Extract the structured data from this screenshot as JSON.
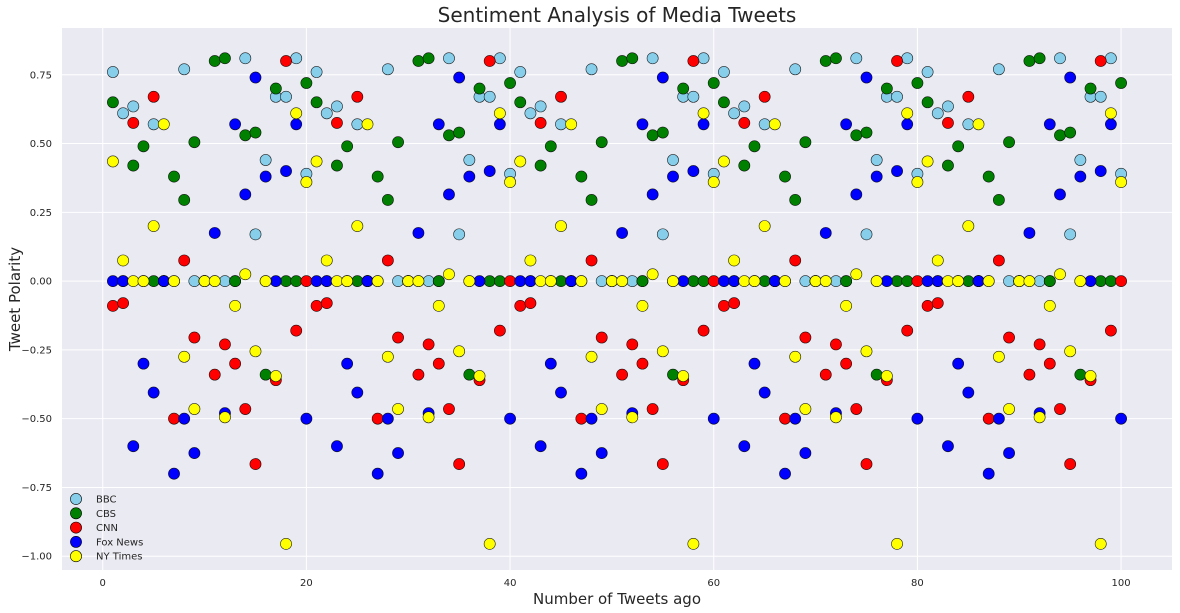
{
  "chart_data": {
    "type": "scatter",
    "title": "Sentiment Analysis of Media Tweets",
    "xlabel": "Number of Tweets ago",
    "ylabel": "Tweet Polarity",
    "xlim": [
      -4,
      105
    ],
    "ylim": [
      -1.05,
      0.92
    ],
    "xticks": [
      0,
      20,
      40,
      60,
      80,
      100
    ],
    "yticks": [
      -1.0,
      -0.75,
      -0.5,
      -0.25,
      0.0,
      0.25,
      0.5,
      0.75
    ],
    "ytick_labels": [
      "−1.00",
      "−0.75",
      "−0.50",
      "−0.25",
      "0.00",
      "0.25",
      "0.50",
      "0.75"
    ],
    "grid": true,
    "legend_position": "lower-left",
    "series": [
      {
        "name": "BBC",
        "color": "#87CEEB",
        "values": [
          0.76,
          0.61,
          0.635,
          0.0,
          0.57,
          0.0,
          0.0,
          0.77,
          0.0,
          0.0,
          0.0,
          0.0,
          0.0,
          0.81,
          0.17,
          0.44,
          0.67,
          0.67,
          0.81,
          0.39,
          0.76,
          0.61,
          0.635,
          0.0,
          0.57,
          0.0,
          0.0,
          0.77,
          0.0,
          0.0,
          0.0,
          0.0,
          0.0,
          0.81,
          0.17,
          0.44,
          0.67,
          0.67,
          0.81,
          0.39,
          0.76,
          0.61,
          0.635,
          0.0,
          0.57,
          0.0,
          0.0,
          0.77,
          0.0,
          0.0,
          0.0,
          0.0,
          0.0,
          0.81,
          0.17,
          0.44,
          0.67,
          0.67,
          0.81,
          0.39,
          0.76,
          0.61,
          0.635,
          0.0,
          0.57,
          0.0,
          0.0,
          0.77,
          0.0,
          0.0,
          0.0,
          0.0,
          0.0,
          0.81,
          0.17,
          0.44,
          0.67,
          0.67,
          0.81,
          0.39,
          0.76,
          0.61,
          0.635,
          0.0,
          0.57,
          0.0,
          0.0,
          0.77,
          0.0,
          0.0,
          0.0,
          0.0,
          0.0,
          0.81,
          0.17,
          0.44,
          0.67,
          0.67,
          0.81,
          0.39
        ]
      },
      {
        "name": "CBS",
        "color": "#008000",
        "values": [
          0.65,
          0.0,
          0.42,
          0.49,
          0.0,
          0.0,
          0.38,
          0.295,
          0.505,
          0.0,
          0.8,
          0.81,
          0.0,
          0.53,
          0.54,
          -0.34,
          0.7,
          0.0,
          0.0,
          0.72,
          0.65,
          0.0,
          0.42,
          0.49,
          0.0,
          0.0,
          0.38,
          0.295,
          0.505,
          0.0,
          0.8,
          0.81,
          0.0,
          0.53,
          0.54,
          -0.34,
          0.7,
          0.0,
          0.0,
          0.72,
          0.65,
          0.0,
          0.42,
          0.49,
          0.0,
          0.0,
          0.38,
          0.295,
          0.505,
          0.0,
          0.8,
          0.81,
          0.0,
          0.53,
          0.54,
          -0.34,
          0.7,
          0.0,
          0.0,
          0.72,
          0.65,
          0.0,
          0.42,
          0.49,
          0.0,
          0.0,
          0.38,
          0.295,
          0.505,
          0.0,
          0.8,
          0.81,
          0.0,
          0.53,
          0.54,
          -0.34,
          0.7,
          0.0,
          0.0,
          0.72,
          0.65,
          0.0,
          0.42,
          0.49,
          0.0,
          0.0,
          0.38,
          0.295,
          0.505,
          0.0,
          0.8,
          0.81,
          0.0,
          0.53,
          0.54,
          -0.34,
          0.7,
          0.0,
          0.0,
          0.72
        ]
      },
      {
        "name": "CNN",
        "color": "#ff0000",
        "values": [
          -0.09,
          -0.08,
          0.575,
          0.0,
          0.67,
          0.0,
          -0.5,
          0.075,
          -0.205,
          0.0,
          -0.34,
          -0.23,
          -0.3,
          -0.465,
          -0.665,
          0.0,
          -0.36,
          0.8,
          -0.18,
          0.0,
          -0.09,
          -0.08,
          0.575,
          0.0,
          0.67,
          0.0,
          -0.5,
          0.075,
          -0.205,
          0.0,
          -0.34,
          -0.23,
          -0.3,
          -0.465,
          -0.665,
          0.0,
          -0.36,
          0.8,
          -0.18,
          0.0,
          -0.09,
          -0.08,
          0.575,
          0.0,
          0.67,
          0.0,
          -0.5,
          0.075,
          -0.205,
          0.0,
          -0.34,
          -0.23,
          -0.3,
          -0.465,
          -0.665,
          0.0,
          -0.36,
          0.8,
          -0.18,
          0.0,
          -0.09,
          -0.08,
          0.575,
          0.0,
          0.67,
          0.0,
          -0.5,
          0.075,
          -0.205,
          0.0,
          -0.34,
          -0.23,
          -0.3,
          -0.465,
          -0.665,
          0.0,
          -0.36,
          0.8,
          -0.18,
          0.0,
          -0.09,
          -0.08,
          0.575,
          0.0,
          0.67,
          0.0,
          -0.5,
          0.075,
          -0.205,
          0.0,
          -0.34,
          -0.23,
          -0.3,
          -0.465,
          -0.665,
          0.0,
          -0.36,
          0.8,
          -0.18,
          0.0
        ]
      },
      {
        "name": "Fox News",
        "color": "#0000ff",
        "values": [
          0.0,
          0.0,
          -0.6,
          -0.3,
          -0.405,
          0.0,
          -0.7,
          -0.5,
          -0.625,
          0.0,
          0.175,
          -0.48,
          0.57,
          0.315,
          0.74,
          0.38,
          0.0,
          0.4,
          0.57,
          -0.5,
          0.0,
          0.0,
          -0.6,
          -0.3,
          -0.405,
          0.0,
          -0.7,
          -0.5,
          -0.625,
          0.0,
          0.175,
          -0.48,
          0.57,
          0.315,
          0.74,
          0.38,
          0.0,
          0.4,
          0.57,
          -0.5,
          0.0,
          0.0,
          -0.6,
          -0.3,
          -0.405,
          0.0,
          -0.7,
          -0.5,
          -0.625,
          0.0,
          0.175,
          -0.48,
          0.57,
          0.315,
          0.74,
          0.38,
          0.0,
          0.4,
          0.57,
          -0.5,
          0.0,
          0.0,
          -0.6,
          -0.3,
          -0.405,
          0.0,
          -0.7,
          -0.5,
          -0.625,
          0.0,
          0.175,
          -0.48,
          0.57,
          0.315,
          0.74,
          0.38,
          0.0,
          0.4,
          0.57,
          -0.5,
          0.0,
          0.0,
          -0.6,
          -0.3,
          -0.405,
          0.0,
          -0.7,
          -0.5,
          -0.625,
          0.0,
          0.175,
          -0.48,
          0.57,
          0.315,
          0.74,
          0.38,
          0.0,
          0.4,
          0.57,
          -0.5
        ]
      },
      {
        "name": "NY Times",
        "color": "#ffff00",
        "values": [
          0.435,
          0.075,
          0.0,
          0.0,
          0.2,
          0.57,
          0.0,
          -0.275,
          -0.465,
          0.0,
          0.0,
          -0.495,
          -0.09,
          0.025,
          -0.255,
          0.0,
          -0.345,
          -0.955,
          0.61,
          0.36,
          0.435,
          0.075,
          0.0,
          0.0,
          0.2,
          0.57,
          0.0,
          -0.275,
          -0.465,
          0.0,
          0.0,
          -0.495,
          -0.09,
          0.025,
          -0.255,
          0.0,
          -0.345,
          -0.955,
          0.61,
          0.36,
          0.435,
          0.075,
          0.0,
          0.0,
          0.2,
          0.57,
          0.0,
          -0.275,
          -0.465,
          0.0,
          0.0,
          -0.495,
          -0.09,
          0.025,
          -0.255,
          0.0,
          -0.345,
          -0.955,
          0.61,
          0.36,
          0.435,
          0.075,
          0.0,
          0.0,
          0.2,
          0.57,
          0.0,
          -0.275,
          -0.465,
          0.0,
          0.0,
          -0.495,
          -0.09,
          0.025,
          -0.255,
          0.0,
          -0.345,
          -0.955,
          0.61,
          0.36,
          0.435,
          0.075,
          0.0,
          0.0,
          0.2,
          0.57,
          0.0,
          -0.275,
          -0.465,
          0.0,
          0.0,
          -0.495,
          -0.09,
          0.025,
          -0.255,
          0.0,
          -0.345,
          -0.955,
          0.61,
          0.36
        ]
      }
    ]
  }
}
